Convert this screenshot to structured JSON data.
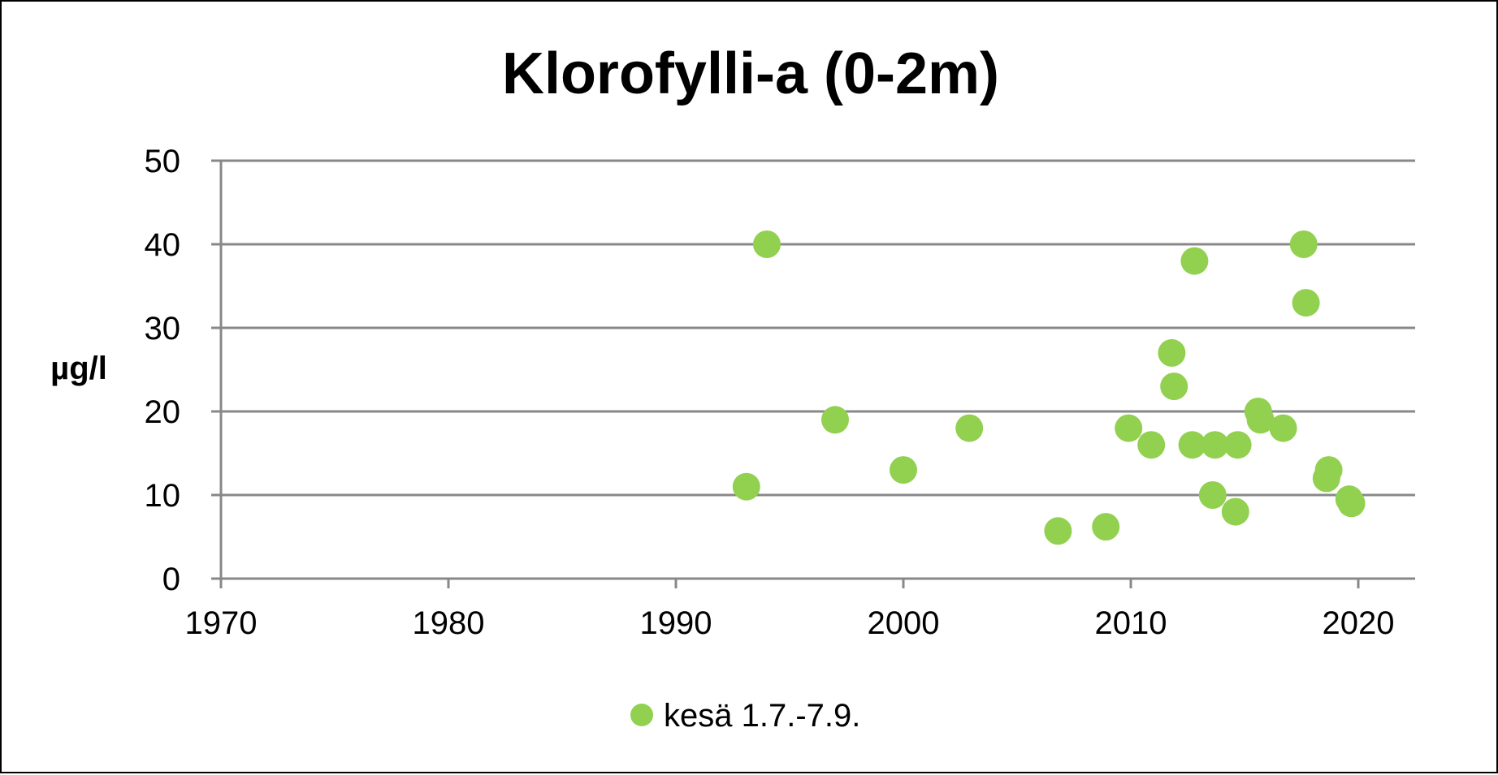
{
  "chart_data": {
    "type": "scatter",
    "title": "Klorofylli-a (0-2m)",
    "xlabel": "",
    "ylabel": "µg/l",
    "xlim": [
      1970,
      2022.5
    ],
    "ylim": [
      0,
      50
    ],
    "x_ticks": [
      1970,
      1980,
      1990,
      2000,
      2010,
      2020
    ],
    "y_ticks": [
      0,
      10,
      20,
      30,
      40,
      50
    ],
    "grid": "horizontal",
    "legend_position": "bottom",
    "series": [
      {
        "name": "kesä 1.7.-7.9.",
        "color": "#92d050",
        "points": [
          {
            "x": 1993.1,
            "y": 11
          },
          {
            "x": 1994.0,
            "y": 40
          },
          {
            "x": 1997.0,
            "y": 19
          },
          {
            "x": 2000.0,
            "y": 13
          },
          {
            "x": 2002.9,
            "y": 18
          },
          {
            "x": 2006.8,
            "y": 5.7
          },
          {
            "x": 2008.9,
            "y": 6.2
          },
          {
            "x": 2009.9,
            "y": 18
          },
          {
            "x": 2010.9,
            "y": 16
          },
          {
            "x": 2011.8,
            "y": 27
          },
          {
            "x": 2011.9,
            "y": 23
          },
          {
            "x": 2012.7,
            "y": 16
          },
          {
            "x": 2012.8,
            "y": 38
          },
          {
            "x": 2013.6,
            "y": 10
          },
          {
            "x": 2013.7,
            "y": 16
          },
          {
            "x": 2014.6,
            "y": 8
          },
          {
            "x": 2014.7,
            "y": 16
          },
          {
            "x": 2015.6,
            "y": 20
          },
          {
            "x": 2015.7,
            "y": 19
          },
          {
            "x": 2016.7,
            "y": 18
          },
          {
            "x": 2017.6,
            "y": 40
          },
          {
            "x": 2017.7,
            "y": 33
          },
          {
            "x": 2018.6,
            "y": 12
          },
          {
            "x": 2018.7,
            "y": 13
          },
          {
            "x": 2019.6,
            "y": 9.5
          },
          {
            "x": 2019.7,
            "y": 9
          }
        ]
      }
    ]
  }
}
